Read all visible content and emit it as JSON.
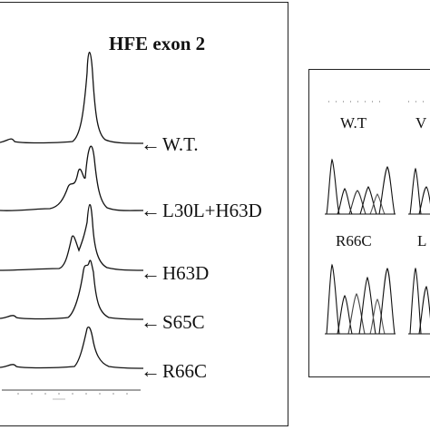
{
  "figure": {
    "left_panel": {
      "title": "HFE exon 2",
      "traces": [
        {
          "label": "W.T."
        },
        {
          "label": "L30L+H63D"
        },
        {
          "label": "H63D"
        },
        {
          "label": "S65C"
        },
        {
          "label": "R66C"
        }
      ]
    },
    "right_panel": {
      "labels": [
        "W.T",
        "V",
        "R66C",
        "L"
      ]
    }
  }
}
